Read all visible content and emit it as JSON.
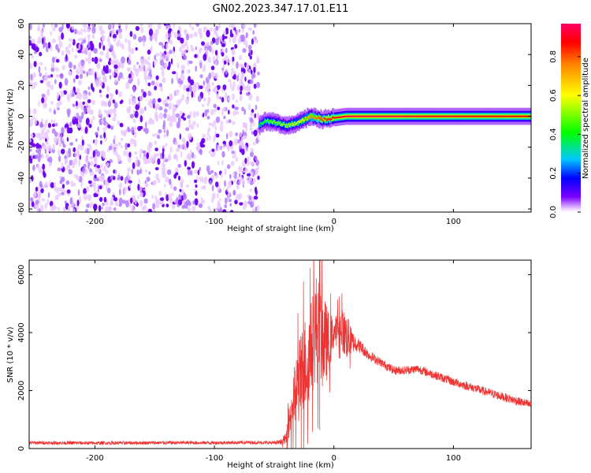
{
  "figure": {
    "title": "GN02.2023.347.17.01.E11"
  },
  "chart_data": [
    {
      "type": "heatmap",
      "title": "",
      "xlabel": "Height of straight line (km)",
      "ylabel": "Frequency (Hz)",
      "xlim": [
        -255,
        165
      ],
      "ylim": [
        -62,
        60
      ],
      "xticks": [
        -200,
        -100,
        0,
        100
      ],
      "yticks": [
        -60,
        -40,
        -20,
        0,
        20,
        40,
        60
      ],
      "grid": false,
      "noise_region_x": [
        -255,
        -63
      ],
      "signal_line": {
        "x": [
          -63,
          -58,
          -50,
          -40,
          -30,
          -20,
          -10,
          0,
          10,
          50,
          100,
          165
        ],
        "y": [
          -6,
          -3,
          -4,
          -6,
          -4,
          0,
          -2,
          -1,
          0,
          0,
          0,
          0
        ],
        "amplitude": [
          0.4,
          0.45,
          0.5,
          0.55,
          0.6,
          0.75,
          0.85,
          0.9,
          0.95,
          0.95,
          0.92,
          0.9
        ]
      },
      "colorbar": {
        "label": "Normalized spectral amplitude",
        "range": [
          0,
          0.97
        ],
        "ticks": [
          "0.0",
          "0.2",
          "0.4",
          "0.6",
          "0.8"
        ],
        "tick_values": [
          0,
          0.2,
          0.4,
          0.6,
          0.8
        ],
        "colormap": [
          "#ffffff",
          "#e9c8ff",
          "#7a00ff",
          "#0000ff",
          "#00c8ff",
          "#00ff00",
          "#ffff00",
          "#ff8800",
          "#ff0000",
          "#ff0066"
        ]
      }
    },
    {
      "type": "line",
      "title": "",
      "xlabel": "Height of straight line (km)",
      "ylabel": "SNR (10 * v/v)",
      "xlim": [
        -255,
        165
      ],
      "ylim": [
        0,
        6500
      ],
      "xticks": [
        -200,
        -100,
        0,
        100
      ],
      "yticks": [
        0,
        2000,
        4000,
        6000
      ],
      "grid": false,
      "series": [
        {
          "color": "#ee3333",
          "x": [
            -255,
            -200,
            -150,
            -100,
            -70,
            -50,
            -45,
            -40,
            -35,
            -30,
            -25,
            -20,
            -15,
            -10,
            -5,
            0,
            5,
            10,
            15,
            20,
            30,
            40,
            50,
            60,
            70,
            80,
            100,
            120,
            140,
            165
          ],
          "y": [
            200,
            190,
            200,
            200,
            210,
            200,
            220,
            350,
            1500,
            2200,
            2800,
            3300,
            4200,
            3800,
            3600,
            4000,
            4200,
            3900,
            3700,
            3600,
            3200,
            2950,
            2700,
            2700,
            2750,
            2600,
            2300,
            2050,
            1800,
            1500
          ],
          "noise_amplitude": [
            60,
            60,
            60,
            60,
            60,
            60,
            80,
            200,
            900,
            1400,
            1700,
            1600,
            1900,
            1800,
            1200,
            500,
            600,
            900,
            400,
            250,
            180,
            150,
            150,
            150,
            150,
            150,
            150,
            150,
            150,
            150
          ]
        }
      ]
    }
  ]
}
